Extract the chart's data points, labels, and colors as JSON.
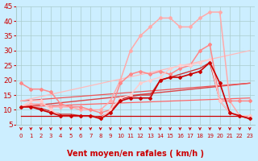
{
  "xlabel": "Vent moyen/en rafales ( km/h )",
  "xlim_min": -0.5,
  "xlim_max": 23.5,
  "ylim": [
    5,
    45
  ],
  "yticks": [
    5,
    10,
    15,
    20,
    25,
    30,
    35,
    40,
    45
  ],
  "xticks": [
    0,
    1,
    2,
    3,
    4,
    5,
    6,
    7,
    8,
    9,
    10,
    11,
    12,
    13,
    14,
    15,
    16,
    17,
    18,
    19,
    20,
    21,
    22,
    23
  ],
  "bg_color": "#cceeff",
  "grid_color": "#aacccc",
  "lines": [
    {
      "x": [
        0,
        1,
        2,
        3,
        4,
        5,
        6,
        7,
        8,
        9,
        10,
        11,
        12,
        13,
        14,
        15,
        16,
        17,
        18,
        19,
        20,
        21,
        22,
        23
      ],
      "y": [
        11,
        11,
        10,
        9,
        8,
        8,
        8,
        8,
        7,
        9,
        13,
        14,
        14,
        14,
        20,
        21,
        21,
        22,
        23,
        26,
        19,
        9,
        8,
        7
      ],
      "color": "#cc0000",
      "lw": 1.2,
      "marker": "D",
      "ms": 2.0,
      "zorder": 6
    },
    {
      "x": [
        0,
        1,
        2,
        3,
        4,
        5,
        6,
        7,
        8,
        9,
        10,
        11,
        12,
        13,
        14,
        15,
        16,
        17,
        18,
        19,
        20,
        21,
        22,
        23
      ],
      "y": [
        11,
        11,
        10.5,
        9.5,
        8.5,
        8.5,
        8,
        8,
        7.5,
        9.5,
        13.5,
        14.5,
        15,
        15,
        20,
        21,
        22,
        23,
        24,
        26,
        13,
        9,
        8,
        7
      ],
      "color": "#cc3333",
      "lw": 1.0,
      "marker": null,
      "ms": 0,
      "zorder": 4
    },
    {
      "x": [
        0,
        23
      ],
      "y": [
        11,
        19
      ],
      "color": "#dd4444",
      "lw": 1.0,
      "marker": null,
      "ms": 0,
      "zorder": 3
    },
    {
      "x": [
        0,
        23
      ],
      "y": [
        13,
        19
      ],
      "color": "#ee5555",
      "lw": 0.9,
      "marker": null,
      "ms": 0,
      "zorder": 3
    },
    {
      "x": [
        0,
        1,
        2,
        3,
        4,
        5,
        6,
        7,
        8,
        9,
        10,
        11,
        12,
        13,
        14,
        15,
        16,
        17,
        18,
        19,
        20,
        21,
        22,
        23
      ],
      "y": [
        11,
        12,
        12,
        11,
        11,
        11,
        10,
        10,
        10,
        13,
        20,
        30,
        35,
        38,
        41,
        41,
        38,
        38,
        41,
        43,
        43,
        13,
        8,
        8
      ],
      "color": "#ffaaaa",
      "lw": 1.1,
      "marker": "D",
      "ms": 2.0,
      "zorder": 5
    },
    {
      "x": [
        0,
        1,
        2,
        3,
        4,
        5,
        6,
        7,
        8,
        9,
        10,
        11,
        12,
        13,
        14,
        15,
        16,
        17,
        18,
        19,
        20,
        21,
        22,
        23
      ],
      "y": [
        19,
        17,
        17,
        16,
        12,
        11,
        11,
        10,
        9,
        10,
        19,
        22,
        23,
        22,
        23,
        22,
        24,
        25,
        30,
        32,
        13,
        13,
        13,
        13
      ],
      "color": "#ff8888",
      "lw": 1.1,
      "marker": "D",
      "ms": 2.0,
      "zorder": 5
    },
    {
      "x": [
        0,
        1,
        2,
        3,
        4,
        5,
        6,
        7,
        8,
        9,
        10,
        11,
        12,
        13,
        14,
        15,
        16,
        17,
        18,
        19,
        20,
        21,
        22,
        23
      ],
      "y": [
        11,
        13,
        13,
        10,
        8,
        8,
        8,
        8,
        7,
        10,
        14,
        15,
        19,
        20,
        21,
        24,
        25,
        25,
        26,
        27,
        13,
        9,
        8,
        8
      ],
      "color": "#ffcccc",
      "lw": 1.1,
      "marker": "D",
      "ms": 2.0,
      "zorder": 5
    },
    {
      "x": [
        0,
        23
      ],
      "y": [
        8,
        8
      ],
      "color": "#cc0000",
      "lw": 0.9,
      "marker": null,
      "ms": 0,
      "zorder": 3
    },
    {
      "x": [
        0,
        23
      ],
      "y": [
        11,
        14
      ],
      "color": "#ff6666",
      "lw": 0.9,
      "marker": null,
      "ms": 0,
      "zorder": 3
    },
    {
      "x": [
        0,
        23
      ],
      "y": [
        13,
        30
      ],
      "color": "#ffbbbb",
      "lw": 0.9,
      "marker": null,
      "ms": 0,
      "zorder": 3
    }
  ],
  "tick_arrow_color": "#cc0000",
  "tick_label_color": "#cc0000",
  "axis_label_color": "#cc0000",
  "xlabel_fontsize": 7,
  "xlabel_bold": true,
  "ytick_fontsize": 6.5,
  "xtick_fontsize": 5.0
}
